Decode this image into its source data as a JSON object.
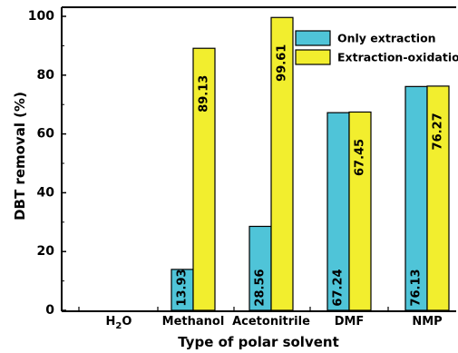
{
  "chart_data": {
    "type": "bar",
    "categories": [
      "H2O",
      "Methanol",
      "Acetonitrile",
      "DMF",
      "NMP"
    ],
    "category_labels": [
      {
        "main": "H",
        "sub": "2",
        "tail": "O"
      },
      {
        "main": "Methanol",
        "sub": "",
        "tail": ""
      },
      {
        "main": "Acetonitrile",
        "sub": "",
        "tail": ""
      },
      {
        "main": "DMF",
        "sub": "",
        "tail": ""
      },
      {
        "main": "NMP",
        "sub": "",
        "tail": ""
      }
    ],
    "series": [
      {
        "name": "Only extraction",
        "color": "#4fc4d8",
        "values": [
          0,
          13.93,
          28.56,
          67.24,
          76.13
        ],
        "labels": [
          "",
          "13.93",
          "28.56",
          "67.24",
          "76.13"
        ]
      },
      {
        "name": "Extraction-oxidation",
        "color": "#f2ee2e",
        "values": [
          0,
          89.13,
          99.61,
          67.45,
          76.27
        ],
        "labels": [
          "",
          "89.13",
          "99.61",
          "67.45",
          "76.27"
        ]
      }
    ],
    "xlabel": "Type of polar solvent",
    "ylabel": "DBT removal (%)",
    "ylim": [
      0,
      100
    ],
    "yticks": [
      "0",
      "20",
      "40",
      "60",
      "80",
      "100"
    ],
    "legend_position": "top-right",
    "grid": false
  }
}
